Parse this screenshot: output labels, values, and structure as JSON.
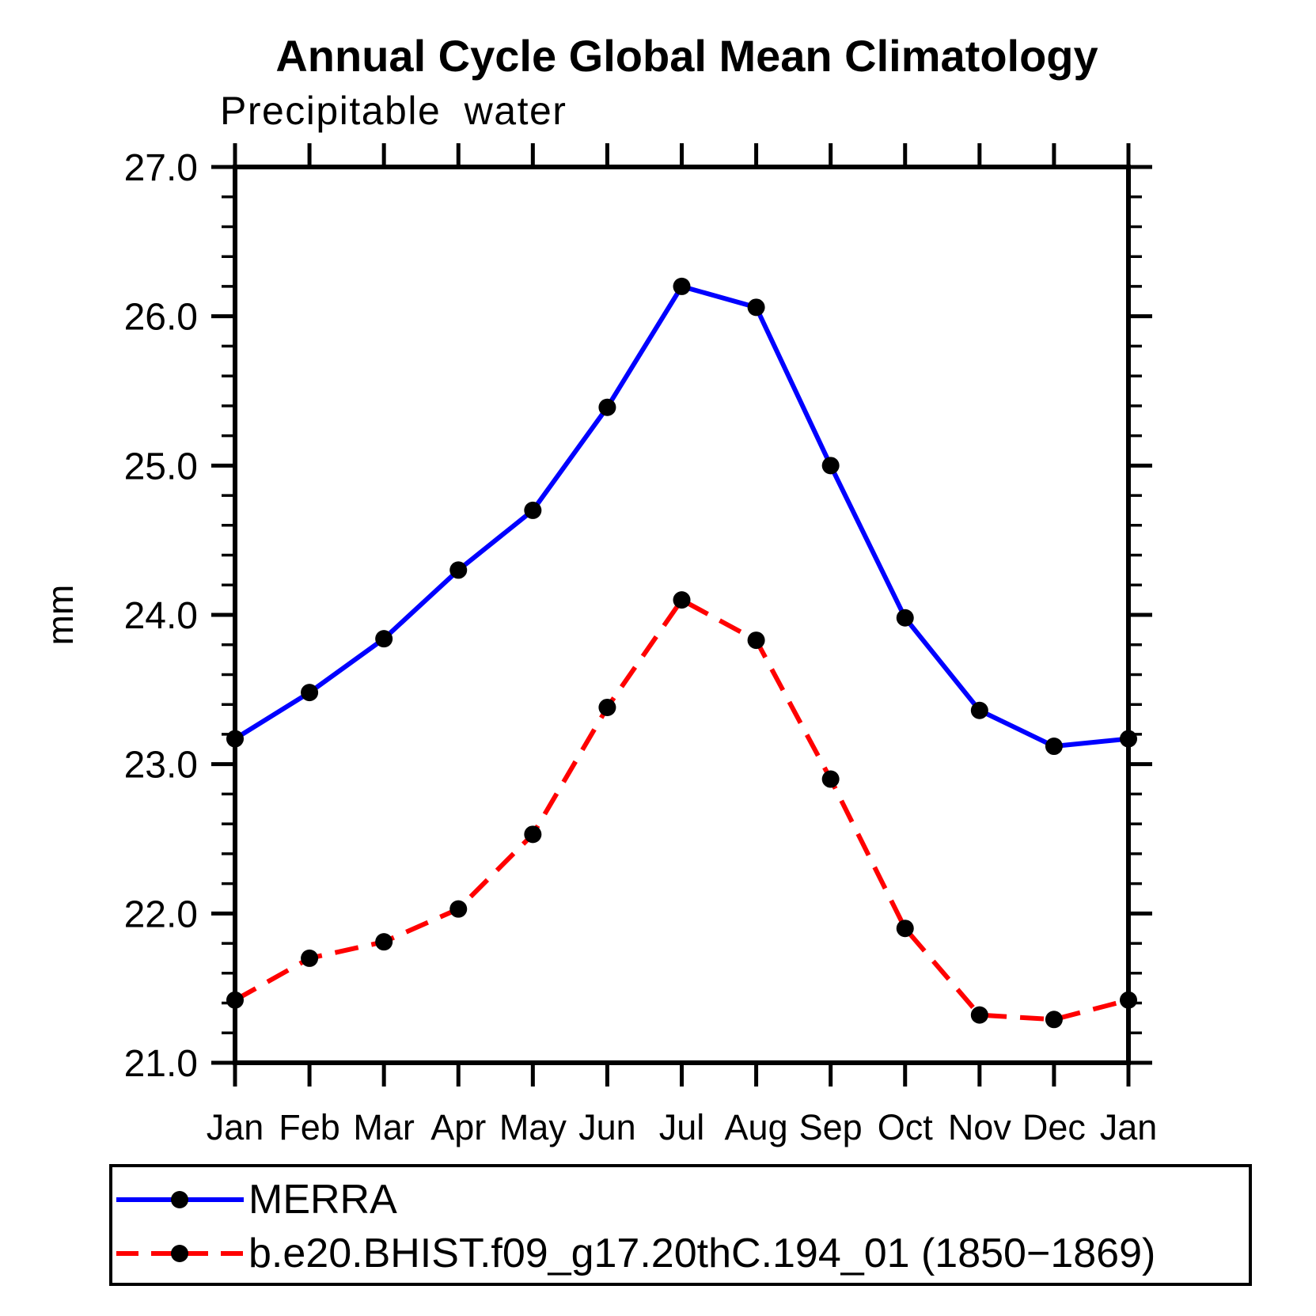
{
  "chart_data": {
    "type": "line",
    "title": "Annual Cycle Global Mean Climatology",
    "subtitle": "Precipitable water",
    "ylabel": "mm",
    "xlabel": "",
    "categories": [
      "Jan",
      "Feb",
      "Mar",
      "Apr",
      "May",
      "Jun",
      "Jul",
      "Aug",
      "Sep",
      "Oct",
      "Nov",
      "Dec",
      "Jan"
    ],
    "ylim": [
      21.0,
      27.0
    ],
    "ytick_major_step": 1.0,
    "ytick_minor_step": 0.2,
    "ytick_labels": [
      "21.0",
      "22.0",
      "23.0",
      "24.0",
      "25.0",
      "26.0",
      "27.0"
    ],
    "grid": false,
    "legend_position": "bottom-box",
    "series": [
      {
        "name": "MERRA",
        "color": "#0000ff",
        "line_style": "solid",
        "marker": "circle",
        "marker_color": "#000000",
        "values": [
          23.17,
          23.48,
          23.84,
          24.3,
          24.7,
          25.39,
          26.2,
          26.06,
          25.0,
          23.98,
          23.36,
          23.12,
          23.17
        ]
      },
      {
        "name": "b.e20.BHIST.f09_g17.20thC.194_01 (1850−1869)",
        "color": "#ff0000",
        "line_style": "dashed",
        "marker": "circle",
        "marker_color": "#000000",
        "values": [
          21.42,
          21.7,
          21.81,
          22.03,
          22.53,
          23.38,
          24.1,
          23.83,
          22.9,
          21.9,
          21.32,
          21.29,
          21.42
        ]
      }
    ],
    "colors": {
      "axis": "#000000",
      "text": "#000000",
      "background": "#ffffff"
    }
  }
}
